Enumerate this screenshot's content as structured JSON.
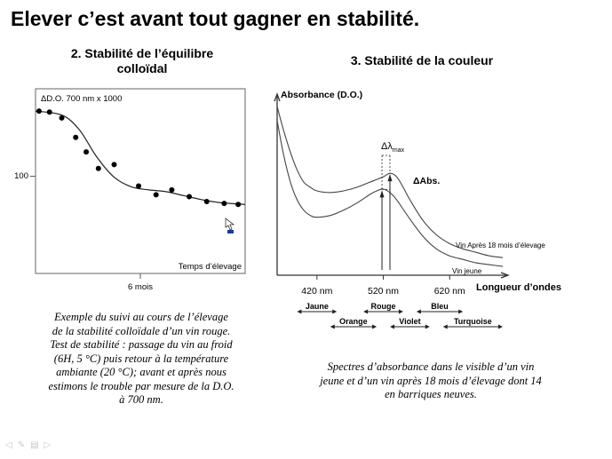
{
  "slide": {
    "title": "Elever c’est avant tout gagner en stabilité."
  },
  "left_panel": {
    "title_line1": "2. Stabilité de l’équilibre",
    "title_line2": "colloïdal",
    "caption_lines": [
      "Exemple du suivi au cours de l’élevage",
      "de la stabilité colloïdale d’un vin rouge.",
      "Test de stabilité : passage du vin au froid",
      "(6H, 5 °C) puis retour à la température",
      "ambiante (20 °C); avant et après nous",
      "estimons le trouble par mesure de la D.O.",
      "à 700 nm."
    ]
  },
  "right_panel": {
    "title": "3. Stabilité de la couleur",
    "caption_lines": [
      "Spectres d’absorbance dans le visible d’un vin",
      "jeune et d’un vin après 18 mois d’élevage dont 14",
      "en barriques neuves."
    ]
  },
  "chart_data": [
    {
      "type": "scatter",
      "ylabel": "ΔD.O. 700 nm x 1000",
      "xlabel": "Temps d’élevage",
      "x_tick_label": "6 mois",
      "y_tick_label": "100",
      "y_tick_value": 100,
      "xlim": [
        0,
        12
      ],
      "ylim": [
        0,
        190
      ],
      "x_tick_value": 6,
      "points": [
        {
          "x": 0.2,
          "y": 167
        },
        {
          "x": 0.8,
          "y": 166
        },
        {
          "x": 1.5,
          "y": 160
        },
        {
          "x": 2.3,
          "y": 140
        },
        {
          "x": 2.9,
          "y": 125
        },
        {
          "x": 3.6,
          "y": 108
        },
        {
          "x": 4.5,
          "y": 112
        },
        {
          "x": 5.9,
          "y": 90
        },
        {
          "x": 6.9,
          "y": 81
        },
        {
          "x": 7.8,
          "y": 86
        },
        {
          "x": 8.8,
          "y": 79
        },
        {
          "x": 9.8,
          "y": 74
        },
        {
          "x": 10.8,
          "y": 72
        },
        {
          "x": 11.6,
          "y": 71
        }
      ],
      "trend": [
        {
          "x": 0,
          "y": 167
        },
        {
          "x": 1.5,
          "y": 163
        },
        {
          "x": 2.5,
          "y": 148
        },
        {
          "x": 3.5,
          "y": 120
        },
        {
          "x": 4.5,
          "y": 99
        },
        {
          "x": 5.5,
          "y": 89
        },
        {
          "x": 6.5,
          "y": 86
        },
        {
          "x": 7.5,
          "y": 84
        },
        {
          "x": 8.5,
          "y": 80
        },
        {
          "x": 9.5,
          "y": 76
        },
        {
          "x": 10.5,
          "y": 73
        },
        {
          "x": 12,
          "y": 71
        }
      ]
    },
    {
      "type": "line",
      "ylabel": "Absorbance (D.O.)",
      "xlabel": "Longueur d’ondes",
      "x_ticks": [
        {
          "value": 420,
          "label": "420 nm"
        },
        {
          "value": 520,
          "label": "520 nm"
        },
        {
          "value": 620,
          "label": "620 nm"
        }
      ],
      "xlim": [
        360,
        700
      ],
      "ylim": [
        0,
        1
      ],
      "series": [
        {
          "name": "Vin Après 18 mois d’élevage",
          "x": [
            360,
            370,
            380,
            390,
            400,
            410,
            420,
            440,
            460,
            480,
            500,
            520,
            530,
            540,
            550,
            560,
            580,
            600,
            620,
            640,
            660,
            680,
            700
          ],
          "y": [
            0.96,
            0.82,
            0.7,
            0.6,
            0.53,
            0.5,
            0.48,
            0.47,
            0.48,
            0.5,
            0.53,
            0.56,
            0.58,
            0.56,
            0.5,
            0.43,
            0.31,
            0.23,
            0.18,
            0.15,
            0.13,
            0.11,
            0.1
          ]
        },
        {
          "name": "Vin jeune",
          "x": [
            360,
            370,
            380,
            390,
            400,
            410,
            420,
            440,
            460,
            480,
            500,
            510,
            520,
            530,
            540,
            560,
            580,
            600,
            620,
            640,
            660,
            680,
            700
          ],
          "y": [
            0.88,
            0.68,
            0.53,
            0.43,
            0.37,
            0.34,
            0.33,
            0.34,
            0.37,
            0.41,
            0.46,
            0.48,
            0.49,
            0.47,
            0.43,
            0.32,
            0.22,
            0.15,
            0.11,
            0.09,
            0.07,
            0.06,
            0.05
          ]
        }
      ],
      "annotations": {
        "delta_lambda": "Δλ",
        "delta_lambda_sub": "max",
        "delta_abs": "ΔAbs.",
        "lambda_max_young": 518,
        "lambda_max_aged": 530
      },
      "color_bands": [
        {
          "label": "Jaune",
          "from": 390,
          "to": 450,
          "row": 0
        },
        {
          "label": "Orange",
          "from": 440,
          "to": 510,
          "row": 1
        },
        {
          "label": "Rouge",
          "from": 490,
          "to": 550,
          "row": 0
        },
        {
          "label": "Violet",
          "from": 530,
          "to": 590,
          "row": 1
        },
        {
          "label": "Bleu",
          "from": 570,
          "to": 640,
          "row": 0
        },
        {
          "label": "Turquoise",
          "from": 610,
          "to": 700,
          "row": 1
        }
      ]
    }
  ]
}
